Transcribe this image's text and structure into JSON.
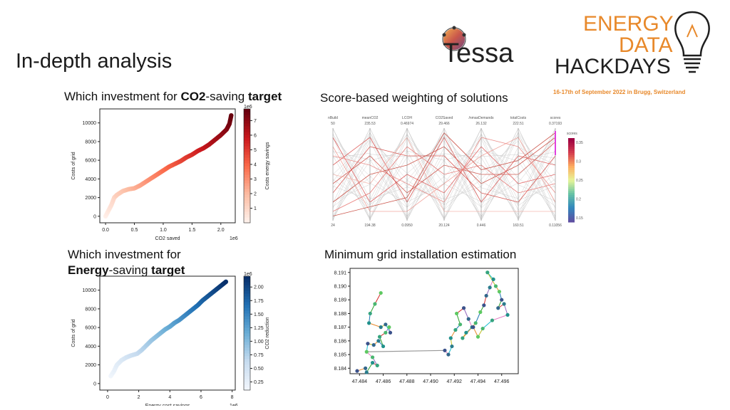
{
  "slide": {
    "title": "In-depth analysis"
  },
  "logos": {
    "tessa": "Tessa",
    "hackdays": {
      "line1": "ENERGY",
      "line2": "DATA",
      "line3": "HACKDAYS"
    },
    "event_date": "16-17th of September 2022 in Brugg, Switzerland",
    "colors": {
      "orange": "#e8892b",
      "dark": "#1f1f1f"
    }
  },
  "captions": {
    "co2": {
      "pre": "Which investment for ",
      "bold1": "CO2",
      "mid": "-saving ",
      "bold2": "target"
    },
    "score": "Score-based weighting of solutions",
    "energy_line1": "Which investment for",
    "energy": {
      "bold1": "Energy",
      "mid": "-saving ",
      "bold2": "target"
    },
    "grid": "Minimum grid installation estimation"
  },
  "chart_data": [
    {
      "id": "co2",
      "type": "scatter",
      "xlabel": "CO2 saved",
      "ylabel": "Costs of grid",
      "x_offset_label": "1e6",
      "x_ticks": [
        "0.0",
        "0.5",
        "1.0",
        "1.5",
        "2.0"
      ],
      "x_tick_values": [
        0,
        0.5,
        1.0,
        1.5,
        2.0
      ],
      "y_ticks": [
        "0",
        "2000",
        "4000",
        "6000",
        "8000",
        "10000"
      ],
      "y_tick_values": [
        0,
        2000,
        4000,
        6000,
        8000,
        10000
      ],
      "xlim": [
        -0.1,
        2.25
      ],
      "ylim": [
        -700,
        11500
      ],
      "colorbar": {
        "label": "Costs energy savings",
        "offset": "1e6",
        "ticks": [
          "1",
          "2",
          "3",
          "4",
          "5",
          "6",
          "7"
        ],
        "range": [
          0,
          7.8
        ],
        "cmap": "Reds"
      },
      "x": [
        0.0,
        0.05,
        0.1,
        0.15,
        0.2,
        0.3,
        0.4,
        0.5,
        0.6,
        0.7,
        0.8,
        0.9,
        1.0,
        1.1,
        1.2,
        1.3,
        1.4,
        1.5,
        1.6,
        1.7,
        1.8,
        1.9,
        2.0,
        2.1,
        2.15,
        2.18
      ],
      "y": [
        0,
        600,
        1200,
        2000,
        2300,
        2700,
        2900,
        3000,
        3300,
        3700,
        4100,
        4500,
        4900,
        5300,
        5600,
        5900,
        6300,
        6600,
        7000,
        7300,
        7700,
        8200,
        8700,
        9300,
        9900,
        10800
      ]
    },
    {
      "id": "energy",
      "type": "scatter",
      "xlabel": "Energy cost savings",
      "ylabel": "Costs of grid",
      "x_offset_label": "1e6",
      "x_ticks": [
        "0",
        "2",
        "4",
        "6",
        "8"
      ],
      "x_tick_values": [
        0,
        2,
        4,
        6,
        8
      ],
      "y_ticks": [
        "0",
        "2000",
        "4000",
        "6000",
        "8000",
        "10000"
      ],
      "y_tick_values": [
        0,
        2000,
        4000,
        6000,
        8000,
        10000
      ],
      "xlim": [
        -0.5,
        8.2
      ],
      "ylim": [
        -700,
        11500
      ],
      "colorbar": {
        "label": "CO2 reduction",
        "offset": "1e6",
        "ticks": [
          "0.25",
          "0.50",
          "0.75",
          "1.00",
          "1.25",
          "1.50",
          "1.75",
          "2.00"
        ],
        "range": [
          0.1,
          2.2
        ],
        "cmap": "Blues"
      },
      "x": [
        0.2,
        0.4,
        0.6,
        0.9,
        1.2,
        1.5,
        1.9,
        2.2,
        2.5,
        2.8,
        3.1,
        3.4,
        3.7,
        4.0,
        4.3,
        4.6,
        4.9,
        5.2,
        5.5,
        5.8,
        6.1,
        6.4,
        6.7,
        7.0,
        7.3,
        7.6
      ],
      "y": [
        800,
        1300,
        2000,
        2500,
        2800,
        3000,
        3200,
        3600,
        4100,
        4600,
        5000,
        5400,
        5800,
        6100,
        6500,
        6800,
        7200,
        7600,
        8000,
        8400,
        8900,
        9300,
        9700,
        10100,
        10500,
        10900
      ]
    },
    {
      "id": "score",
      "type": "parallel-coordinates",
      "axes": [
        {
          "name": "nBuild",
          "top": "50",
          "bottom": "24"
        },
        {
          "name": "meanCO2",
          "top": "235.53",
          "bottom": "194.38"
        },
        {
          "name": "LCOH",
          "top": "0.46974",
          "bottom": "0.0950"
        },
        {
          "name": "CO2Saved",
          "top": "29.466",
          "bottom": "20.124"
        },
        {
          "name": "/nmaxDemands",
          "top": "26.132",
          "bottom": "0.446"
        },
        {
          "name": "totalCosts",
          "top": "222.51",
          "bottom": "160.51"
        },
        {
          "name": "scores",
          "top": "0.37193",
          "bottom": "0.11056"
        }
      ],
      "colorbar": {
        "label": "scores",
        "ticks": [
          "0.35",
          "0.3",
          "0.25",
          "0.2",
          "0.15"
        ],
        "cmap": "Spectral_r"
      },
      "lines": [
        [
          0.2,
          0.5,
          0.6,
          0.8,
          0.4,
          0.6,
          0.9
        ],
        [
          0.4,
          0.7,
          0.3,
          0.6,
          0.5,
          0.5,
          0.85
        ],
        [
          0.9,
          0.2,
          0.5,
          0.3,
          0.8,
          0.4,
          0.5
        ],
        [
          0.6,
          0.9,
          0.2,
          0.9,
          0.2,
          0.7,
          0.6
        ],
        [
          0.1,
          0.3,
          0.8,
          0.5,
          0.6,
          0.3,
          0.4
        ],
        [
          0.7,
          0.6,
          0.4,
          0.2,
          0.9,
          0.8,
          0.3
        ],
        [
          0.3,
          0.8,
          0.7,
          0.7,
          0.3,
          0.2,
          0.7
        ],
        [
          0.8,
          0.1,
          0.1,
          0.4,
          0.7,
          0.9,
          0.2
        ],
        [
          0.5,
          0.4,
          0.9,
          0.1,
          0.1,
          0.1,
          0.1
        ],
        [
          0.05,
          0.15,
          0.25,
          0.95,
          0.55,
          0.65,
          0.95
        ]
      ]
    },
    {
      "id": "grid",
      "type": "scatter",
      "x_ticks": [
        "47.484",
        "47.486",
        "47.488",
        "47.490",
        "47.492",
        "47.494",
        "47.496"
      ],
      "x_tick_values": [
        47.484,
        47.486,
        47.488,
        47.49,
        47.492,
        47.494,
        47.496
      ],
      "y_ticks": [
        "8.191",
        "8.190",
        "8.189",
        "8.188",
        "8.187",
        "8.186",
        "8.185",
        "8.184"
      ],
      "y_tick_values": [
        8.191,
        8.19,
        8.189,
        8.188,
        8.187,
        8.186,
        8.185,
        8.184
      ],
      "xlim": [
        47.4832,
        47.4974
      ],
      "ylim": [
        8.1836,
        8.1913
      ],
      "x": [
        47.4838,
        47.4845,
        47.4846,
        47.4851,
        47.4855,
        47.4851,
        47.4846,
        47.4847,
        47.4852,
        47.4856,
        47.486,
        47.4857,
        47.4862,
        47.4865,
        47.4866,
        47.4862,
        47.4858,
        47.4848,
        47.4849,
        47.4853,
        47.4858,
        47.4912,
        47.4915,
        47.4918,
        47.4917,
        47.4921,
        47.4925,
        47.4922,
        47.4928,
        47.4932,
        47.4935,
        47.493,
        47.4927,
        47.4938,
        47.4942,
        47.4945,
        47.4947,
        47.495,
        47.4953,
        47.4948,
        47.4955,
        47.4958,
        47.496,
        47.4957,
        47.4962,
        47.4965,
        47.4952,
        47.4944,
        47.494,
        47.4936
      ],
      "y": [
        8.1838,
        8.184,
        8.1837,
        8.1844,
        8.1842,
        8.1848,
        8.1852,
        8.1858,
        8.1857,
        8.186,
        8.1856,
        8.1863,
        8.1866,
        8.187,
        8.1866,
        8.1872,
        8.187,
        8.1873,
        8.188,
        8.1887,
        8.1895,
        8.1853,
        8.185,
        8.1856,
        8.1862,
        8.1868,
        8.1872,
        8.188,
        8.1884,
        8.1876,
        8.187,
        8.1866,
        8.1862,
        8.1873,
        8.1881,
        8.1886,
        8.1893,
        8.1899,
        8.1905,
        8.191,
        8.19,
        8.1896,
        8.189,
        8.1884,
        8.1887,
        8.1879,
        8.1875,
        8.1869,
        8.1863,
        8.187
      ]
    }
  ]
}
